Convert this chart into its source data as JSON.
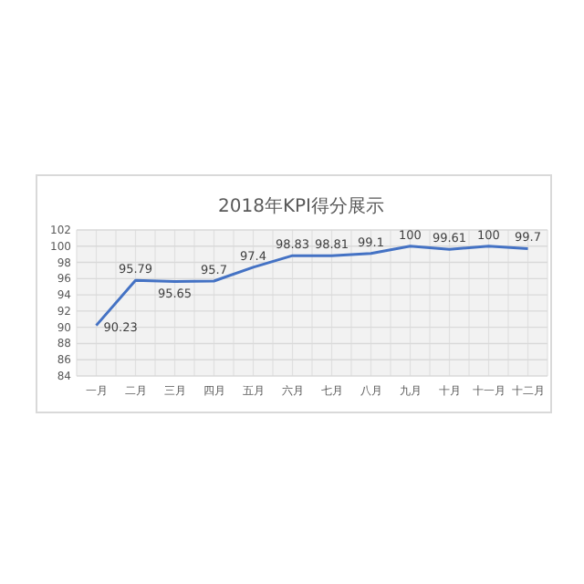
{
  "chart_data": {
    "type": "line",
    "title": "2018年KPI得分展示",
    "categories": [
      "一月",
      "二月",
      "三月",
      "四月",
      "五月",
      "六月",
      "七月",
      "八月",
      "九月",
      "十月",
      "十一月",
      "十二月"
    ],
    "series": [
      {
        "color": "#4472c4",
        "values": [
          90.23,
          95.79,
          95.65,
          95.7,
          97.4,
          98.83,
          98.81,
          99.1,
          100,
          99.61,
          100,
          99.7
        ]
      }
    ],
    "ylim": [
      84,
      102
    ],
    "yticks": [
      84,
      86,
      88,
      90,
      92,
      94,
      96,
      98,
      100,
      102
    ],
    "grid": true,
    "data_labels": true,
    "marker": "none",
    "line_style": "solid"
  }
}
